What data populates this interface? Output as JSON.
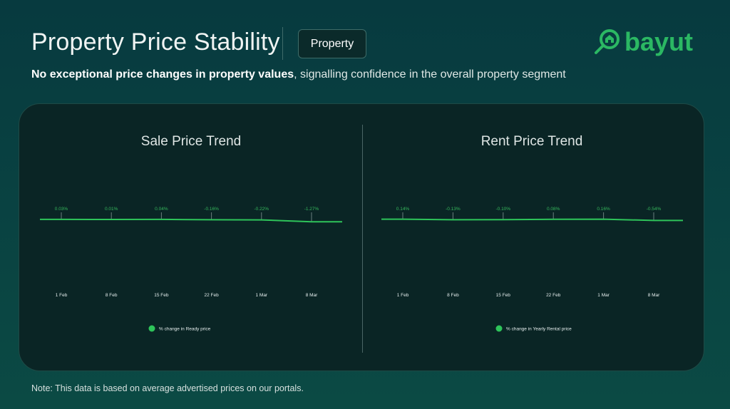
{
  "header": {
    "title": "Property Price Stability",
    "badge": "Property",
    "logo": "bayut",
    "subtitle_bold": "No exceptional price changes in property values",
    "subtitle_rest": ", signalling confidence in the overall property segment"
  },
  "note": "Note: This data is based on average advertised prices on our portals.",
  "colors": {
    "line": "#2ec45a",
    "label": "#36b85c",
    "accent": "#2bb863"
  },
  "chart_data": [
    {
      "type": "line",
      "title": "Sale Price Trend",
      "categories": [
        "1 Feb",
        "8 Feb",
        "15 Feb",
        "22 Feb",
        "1 Mar",
        "8 Mar"
      ],
      "series": [
        {
          "name": "% change in Ready price",
          "values": [
            0.03,
            0.01,
            0.04,
            -0.16,
            -0.22,
            -1.27
          ]
        }
      ],
      "data_labels": [
        "0.03%",
        "0.01%",
        "0.04%",
        "-0.16%",
        "-0.22%",
        "-1.27%"
      ],
      "legend": "bottom",
      "grid": false
    },
    {
      "type": "line",
      "title": "Rent Price Trend",
      "categories": [
        "1 Feb",
        "8 Feb",
        "15 Feb",
        "22 Feb",
        "1 Mar",
        "8 Mar"
      ],
      "series": [
        {
          "name": "% change in Yearly Rental price",
          "values": [
            0.14,
            -0.13,
            -0.1,
            0.08,
            0.16,
            -0.54
          ]
        }
      ],
      "data_labels": [
        "0.14%",
        "-0.13%",
        "-0.10%",
        "0.08%",
        "0.16%",
        "-0.54%"
      ],
      "legend": "bottom",
      "grid": false
    }
  ]
}
